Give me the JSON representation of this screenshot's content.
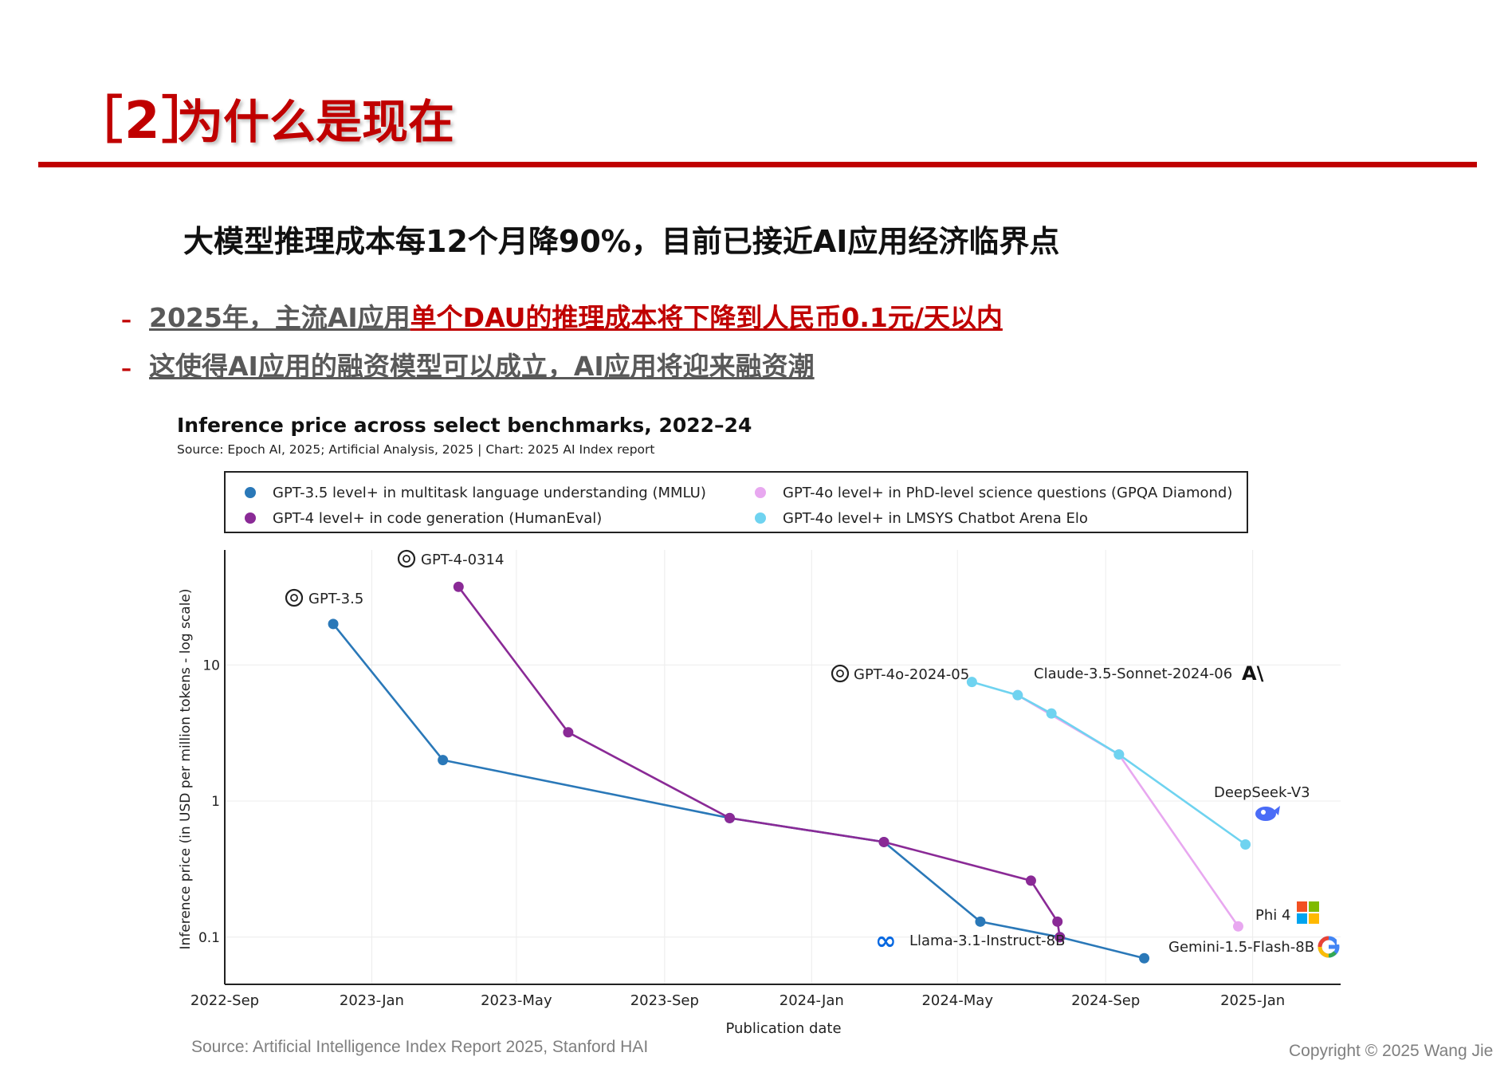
{
  "header": {
    "section_number": "［2］",
    "section_title": "为什么是现在"
  },
  "headline": "大模型推理成本每12个月降90%，目前已接近AI应用经济临界点",
  "bullets": [
    {
      "dash": "–",
      "parts": [
        "2025年，主流AI应用",
        "单个DAU的推理成本将下降到人民币0.1元/天以内"
      ]
    },
    {
      "dash": "–",
      "parts": [
        "这使得AI应用的融资模型可以成立，AI应用将迎来融资潮"
      ]
    }
  ],
  "chart_data": {
    "type": "line",
    "title": "Inference price across select benchmarks, 2022–24",
    "subtitle": "Source: Epoch AI, 2025; Artificial Analysis, 2025 | Chart: 2025 AI Index report",
    "xlabel": "Publication date",
    "ylabel": "Inference price (in USD per million tokens - log scale)",
    "y_scale": "log",
    "ylim": [
      0.045,
      70
    ],
    "xlim": [
      "2022-09-01",
      "2025-03-15"
    ],
    "x_ticks": [
      {
        "date": "2022-09-01",
        "label": "2022-Sep"
      },
      {
        "date": "2023-01-01",
        "label": "2023-Jan"
      },
      {
        "date": "2023-05-01",
        "label": "2023-May"
      },
      {
        "date": "2023-09-01",
        "label": "2023-Sep"
      },
      {
        "date": "2024-01-01",
        "label": "2024-Jan"
      },
      {
        "date": "2024-05-01",
        "label": "2024-May"
      },
      {
        "date": "2024-09-01",
        "label": "2024-Sep"
      },
      {
        "date": "2025-01-01",
        "label": "2025-Jan"
      }
    ],
    "y_ticks": [
      {
        "value": 0.1,
        "label": "0.1"
      },
      {
        "value": 1,
        "label": "1"
      },
      {
        "value": 10,
        "label": "10"
      }
    ],
    "grid": true,
    "legend_position": "top",
    "series": [
      {
        "name": "GPT-3.5 level+ in multitask language understanding (MMLU)",
        "color": "#2a78b8",
        "points": [
          {
            "x": "2022-11-30",
            "y": 20
          },
          {
            "x": "2023-03-01",
            "y": 2
          },
          {
            "x": "2023-10-25",
            "y": 0.75
          },
          {
            "x": "2024-03-01",
            "y": 0.5
          },
          {
            "x": "2024-05-20",
            "y": 0.13
          },
          {
            "x": "2024-07-25",
            "y": 0.1
          },
          {
            "x": "2024-10-03",
            "y": 0.07
          }
        ]
      },
      {
        "name": "GPT-4 level+ in code generation (HumanEval)",
        "color": "#8a2a96",
        "points": [
          {
            "x": "2023-03-14",
            "y": 37.5
          },
          {
            "x": "2023-06-13",
            "y": 3.2
          },
          {
            "x": "2023-10-25",
            "y": 0.75
          },
          {
            "x": "2024-03-01",
            "y": 0.5
          },
          {
            "x": "2024-07-01",
            "y": 0.26
          },
          {
            "x": "2024-07-23",
            "y": 0.13
          },
          {
            "x": "2024-07-25",
            "y": 0.1
          }
        ]
      },
      {
        "name": "GPT-4o level+ in PhD-level science questions (GPQA Diamond)",
        "color": "#e8a8f0",
        "points": [
          {
            "x": "2024-06-20",
            "y": 6
          },
          {
            "x": "2024-09-12",
            "y": 2.2
          },
          {
            "x": "2024-12-20",
            "y": 0.12
          }
        ]
      },
      {
        "name": "GPT-4o level+ in LMSYS Chatbot Arena Elo",
        "color": "#6fd3f0",
        "points": [
          {
            "x": "2024-05-13",
            "y": 7.5
          },
          {
            "x": "2024-06-20",
            "y": 6
          },
          {
            "x": "2024-07-18",
            "y": 4.4
          },
          {
            "x": "2024-09-12",
            "y": 2.2
          },
          {
            "x": "2024-12-26",
            "y": 0.48
          }
        ]
      }
    ],
    "annotations": [
      {
        "text": "GPT-3.5",
        "icon": "openai-icon"
      },
      {
        "text": "GPT-4-0314",
        "icon": "openai-icon"
      },
      {
        "text": "GPT-4o-2024-05",
        "icon": "openai-icon"
      },
      {
        "text": "Claude-3.5-Sonnet-2024-06",
        "icon": "anthropic-icon"
      },
      {
        "text": "DeepSeek-V3",
        "icon": "deepseek-whale-icon"
      },
      {
        "text": "Phi 4",
        "icon": "microsoft-icon"
      },
      {
        "text": "Llama-3.1-Instruct-8B",
        "icon": "meta-icon"
      },
      {
        "text": "Gemini-1.5-Flash-8B",
        "icon": "google-icon"
      }
    ]
  },
  "footer": {
    "source": "Source: Artificial Intelligence Index Report 2025, Stanford HAI",
    "copyright": "Copyright © 2025 Wang Jie"
  }
}
